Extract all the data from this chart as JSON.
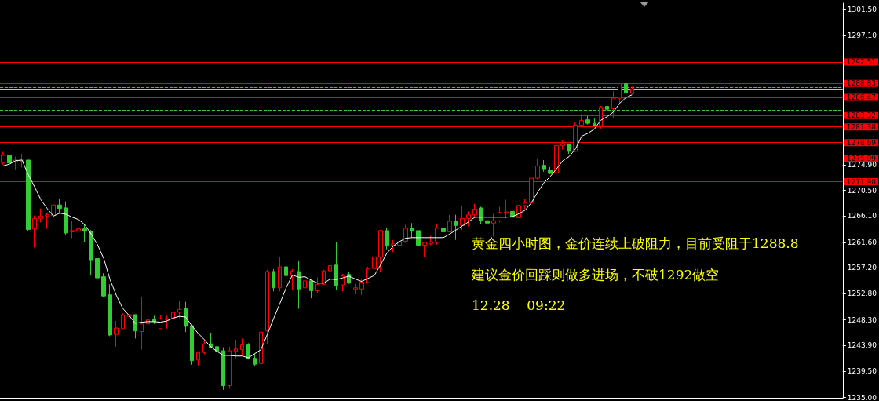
{
  "chart_data": {
    "type": "candlestick",
    "categories": [
      null,
      null,
      null,
      null,
      null,
      null,
      null,
      null,
      null,
      null,
      null,
      null,
      null,
      null,
      null,
      null,
      null,
      null,
      null,
      null,
      null,
      null,
      null,
      null,
      null,
      null,
      null,
      null,
      null,
      null,
      null,
      null,
      null,
      null,
      null,
      null,
      null,
      null,
      null,
      null,
      null,
      null,
      null,
      null,
      null,
      null,
      null,
      null,
      null,
      null,
      null,
      null,
      null,
      null,
      null,
      null,
      null,
      null,
      null,
      null,
      null,
      null,
      null,
      null,
      null,
      null,
      null,
      null,
      null,
      null,
      null,
      null,
      null,
      null,
      null,
      null,
      null,
      null,
      null,
      null,
      null,
      null,
      null,
      null,
      null,
      null,
      null,
      null,
      null,
      null,
      null,
      null,
      null,
      null,
      null,
      null,
      null,
      null,
      null,
      null,
      null,
      null,
      null,
      null,
      null,
      null,
      null,
      null,
      null,
      null,
      null,
      null,
      null,
      null,
      null,
      null,
      null,
      null,
      null,
      null,
      null,
      null,
      null,
      null,
      null,
      null,
      null,
      null,
      null,
      null,
      null,
      null,
      null,
      null
    ],
    "ohlc": [
      [
        1275.3,
        1277.1,
        1274.9,
        1276.5
      ],
      [
        1276.5,
        1276.9,
        1274.5,
        1275.2
      ],
      [
        1275.4,
        1276.3,
        1274.1,
        1275.7
      ],
      [
        1275.5,
        1276.8,
        1274.4,
        1275.7
      ],
      [
        1275.7,
        1275.7,
        1263.5,
        1263.8
      ],
      [
        1263.9,
        1266.2,
        1260.7,
        1265.7
      ],
      [
        1265.7,
        1267.4,
        1265.0,
        1266.1
      ],
      [
        1266.1,
        1266.7,
        1263.9,
        1266.3
      ],
      [
        1266.2,
        1269.0,
        1265.6,
        1268.0
      ],
      [
        1268.0,
        1269.1,
        1266.6,
        1267.4
      ],
      [
        1267.5,
        1268.6,
        1262.8,
        1263.2
      ],
      [
        1263.4,
        1265.3,
        1262.3,
        1263.6
      ],
      [
        1263.5,
        1264.8,
        1262.3,
        1263.9
      ],
      [
        1263.9,
        1264.7,
        1261.6,
        1263.5
      ],
      [
        1263.5,
        1263.7,
        1255.9,
        1258.6
      ],
      [
        1258.8,
        1258.8,
        1254.5,
        1255.5
      ],
      [
        1255.7,
        1256.3,
        1252.2,
        1252.4
      ],
      [
        1252.6,
        1254.4,
        1245.5,
        1245.7
      ],
      [
        1245.8,
        1248.1,
        1243.7,
        1246.9
      ],
      [
        1246.8,
        1249.4,
        1246.8,
        1249.1
      ],
      [
        1248.9,
        1249.6,
        1248.0,
        1249.2
      ],
      [
        1249.2,
        1249.2,
        1245.1,
        1246.4
      ],
      [
        1246.3,
        1252.3,
        1243.2,
        1247.6
      ],
      [
        1247.6,
        1248.6,
        1246.0,
        1248.3
      ],
      [
        1248.4,
        1249.0,
        1247.6,
        1248.0
      ],
      [
        1246.8,
        1249.1,
        1246.8,
        1248.5
      ],
      [
        1248.3,
        1249.0,
        1246.8,
        1248.5
      ],
      [
        1248.5,
        1251.1,
        1247.9,
        1249.6
      ],
      [
        1249.6,
        1251.5,
        1248.6,
        1250.1
      ],
      [
        1250.2,
        1251.4,
        1246.2,
        1247.2
      ],
      [
        1247.3,
        1247.6,
        1240.6,
        1241.3
      ],
      [
        1241.4,
        1242.9,
        1240.5,
        1242.7
      ],
      [
        1242.7,
        1244.8,
        1242.4,
        1244.2
      ],
      [
        1244.2,
        1246.1,
        1243.4,
        1243.6
      ],
      [
        1243.7,
        1244.5,
        1242.6,
        1242.9
      ],
      [
        1243.0,
        1243.6,
        1236.3,
        1237.0
      ],
      [
        1237.0,
        1243.7,
        1236.5,
        1243.0
      ],
      [
        1242.9,
        1244.9,
        1241.7,
        1243.3
      ],
      [
        1243.2,
        1245.1,
        1242.2,
        1244.0
      ],
      [
        1244.0,
        1244.3,
        1241.5,
        1241.6
      ],
      [
        1241.7,
        1242.5,
        1240.3,
        1240.7
      ],
      [
        1240.8,
        1247.3,
        1240.1,
        1246.2
      ],
      [
        1246.4,
        1256.9,
        1244.1,
        1256.6
      ],
      [
        1256.6,
        1257.0,
        1253.2,
        1253.8
      ],
      [
        1253.8,
        1259.0,
        1253.2,
        1257.4
      ],
      [
        1257.4,
        1258.6,
        1255.3,
        1255.9
      ],
      [
        1255.9,
        1257.0,
        1253.4,
        1256.7
      ],
      [
        1256.6,
        1258.5,
        1250.2,
        1253.6
      ],
      [
        1253.8,
        1256.4,
        1251.5,
        1255.0
      ],
      [
        1255.0,
        1255.2,
        1252.0,
        1253.3
      ],
      [
        1253.3,
        1255.6,
        1252.9,
        1254.4
      ],
      [
        1254.4,
        1256.9,
        1254.3,
        1256.7
      ],
      [
        1256.7,
        1258.6,
        1255.9,
        1257.6
      ],
      [
        1257.7,
        1261.7,
        1253.5,
        1254.2
      ],
      [
        1254.3,
        1256.2,
        1253.2,
        1255.8
      ],
      [
        1256.1,
        1256.6,
        1254.5,
        1254.6
      ],
      [
        1253.6,
        1254.5,
        1252.7,
        1253.8
      ],
      [
        1253.6,
        1255.3,
        1252.6,
        1254.8
      ],
      [
        1254.7,
        1257.4,
        1254.7,
        1257.1
      ],
      [
        1257.1,
        1259.4,
        1256.1,
        1259.1
      ],
      [
        1259.1,
        1263.7,
        1256.5,
        1263.6
      ],
      [
        1263.6,
        1264.0,
        1260.4,
        1261.1
      ],
      [
        1261.1,
        1262.0,
        1259.9,
        1261.3
      ],
      [
        1261.1,
        1262.3,
        1260.0,
        1261.7
      ],
      [
        1261.8,
        1264.6,
        1261.5,
        1264.0
      ],
      [
        1264.0,
        1264.9,
        1262.4,
        1263.5
      ],
      [
        1263.6,
        1265.2,
        1260.0,
        1261.1
      ],
      [
        1261.1,
        1261.7,
        1259.1,
        1261.6
      ],
      [
        1261.4,
        1262.7,
        1261.1,
        1261.7
      ],
      [
        1261.6,
        1264.7,
        1261.2,
        1264.0
      ],
      [
        1264.0,
        1264.4,
        1262.4,
        1263.4
      ],
      [
        1263.4,
        1266.3,
        1263.4,
        1265.2
      ],
      [
        1265.2,
        1266.3,
        1262.0,
        1264.5
      ],
      [
        1264.5,
        1267.8,
        1263.7,
        1265.7
      ],
      [
        1265.7,
        1266.9,
        1264.3,
        1266.3
      ],
      [
        1266.3,
        1268.2,
        1265.9,
        1267.3
      ],
      [
        1267.5,
        1267.7,
        1264.7,
        1265.3
      ],
      [
        1265.3,
        1265.9,
        1264.1,
        1264.9
      ],
      [
        1264.9,
        1266.5,
        1262.6,
        1265.3
      ],
      [
        1265.3,
        1267.7,
        1265.0,
        1266.7
      ],
      [
        1266.6,
        1268.9,
        1265.7,
        1266.8
      ],
      [
        1266.9,
        1267.1,
        1264.9,
        1265.9
      ],
      [
        1265.8,
        1268.0,
        1265.8,
        1267.9
      ],
      [
        1267.9,
        1269.1,
        1267.3,
        1268.3
      ],
      [
        1268.4,
        1272.9,
        1267.5,
        1272.6
      ],
      [
        1272.6,
        1276.0,
        1272.4,
        1274.7
      ],
      [
        1274.8,
        1275.7,
        1273.7,
        1274.2
      ],
      [
        1274.0,
        1274.5,
        1273.3,
        1273.4
      ],
      [
        1273.5,
        1279.1,
        1273.4,
        1278.2
      ],
      [
        1278.2,
        1279.1,
        1277.5,
        1278.5
      ],
      [
        1278.5,
        1278.5,
        1276.8,
        1277.2
      ],
      [
        1277.2,
        1282.2,
        1277.1,
        1281.7
      ],
      [
        1281.7,
        1283.6,
        1281.5,
        1282.5
      ],
      [
        1282.6,
        1283.5,
        1281.8,
        1282.0
      ],
      [
        1282.0,
        1282.8,
        1281.5,
        1281.6
      ],
      [
        1281.6,
        1285.0,
        1281.1,
        1284.8
      ],
      [
        1284.9,
        1286.3,
        1284.0,
        1284.4
      ],
      [
        1284.5,
        1287.5,
        1282.9,
        1286.3
      ],
      [
        1286.3,
        1288.8,
        1285.2,
        1288.8
      ],
      [
        1288.8,
        1288.9,
        1286.7,
        1287.2
      ],
      [
        1287.2,
        1288.3,
        1287.0,
        1287.9
      ],
      null,
      null,
      null,
      null,
      null,
      null,
      null,
      null,
      null,
      null,
      null,
      null,
      null,
      null,
      null,
      null,
      null,
      null,
      null,
      null,
      null,
      null,
      null,
      null,
      null,
      null,
      null,
      null,
      null,
      null,
      null,
      null,
      null
    ],
    "colors": [
      "#ff0000",
      "#32cd32",
      "#ff0000",
      "#ff0000",
      "#32cd32",
      "#ff0000",
      "#ff0000",
      "#ff0000",
      "#ff0000",
      "#32cd32",
      "#32cd32",
      "#ff0000",
      "#ff0000",
      "#32cd32",
      "#32cd32",
      "#32cd32",
      "#32cd32",
      "#32cd32",
      "#ff0000",
      "#ff0000",
      "#ff0000",
      "#32cd32",
      "#ff0000",
      "#ff0000",
      "#32cd32",
      "#ff0000",
      "#ff0000",
      "#ff0000",
      "#ff0000",
      "#32cd32",
      "#32cd32",
      "#ff0000",
      "#ff0000",
      "#32cd32",
      "#32cd32",
      "#32cd32",
      "#ff0000",
      "#ff0000",
      "#ff0000",
      "#32cd32",
      "#32cd32",
      "#ff0000",
      "#ff0000",
      "#32cd32",
      "#ff0000",
      "#32cd32",
      "#ff0000",
      "#32cd32",
      "#ff0000",
      "#32cd32",
      "#ff0000",
      "#ff0000",
      "#ff0000",
      "#32cd32",
      "#ff0000",
      "#32cd32",
      "#ff0000",
      "#ff0000",
      "#ff0000",
      "#ff0000",
      "#ff0000",
      "#32cd32",
      "#ff0000",
      "#ff0000",
      "#ff0000",
      "#32cd32",
      "#32cd32",
      "#ff0000",
      "#ff0000",
      "#ff0000",
      "#32cd32",
      "#ff0000",
      "#32cd32",
      "#ff0000",
      "#ff0000",
      "#ff0000",
      "#32cd32",
      "#32cd32",
      "#ff0000",
      "#ff0000",
      "#ff0000",
      "#32cd32",
      "#ff0000",
      "#ff0000",
      "#ff0000",
      "#ff0000",
      "#32cd32",
      "#32cd32",
      "#ff0000",
      "#ff0000",
      "#32cd32",
      "#ff0000",
      "#ff0000",
      "#32cd32",
      "#32cd32",
      "#ff0000",
      "#32cd32",
      "#ff0000",
      "#ff0000",
      "#32cd32",
      "#ff0000",
      null,
      null,
      null,
      null,
      null,
      null,
      null,
      null,
      null,
      null,
      null,
      null,
      null,
      null,
      null,
      null,
      null,
      null,
      null,
      null,
      null,
      null,
      null,
      null,
      null,
      null,
      null,
      null,
      null,
      null,
      null,
      null,
      null
    ],
    "series": [
      {
        "type": "line",
        "color": "#ffffff",
        "values": [
          1274.7,
          1275.0,
          1275.6,
          1275.7,
          1273.2,
          1271.1,
          1268.9,
          1267.4,
          1266.1,
          1266.6,
          1266.4,
          1265.9,
          1265.5,
          1264.6,
          1263.0,
          1261.2,
          1258.8,
          1255.2,
          1252.5,
          1250.3,
          1249.1,
          1247.7,
          1247.9,
          1248.0,
          1248.0,
          1247.9,
          1248.1,
          1248.6,
          1248.9,
          1248.8,
          1247.3,
          1246.0,
          1244.9,
          1243.7,
          1242.9,
          1242.2,
          1242.2,
          1242.1,
          1242.1,
          1241.8,
          1242.5,
          1243.2,
          1245.8,
          1248.5,
          1251.1,
          1253.8,
          1256.0,
          1255.6,
          1255.7,
          1255.1,
          1254.6,
          1254.6,
          1255.3,
          1255.2,
          1255.5,
          1255.8,
          1255.3,
          1254.9,
          1255.4,
          1255.9,
          1257.7,
          1259.7,
          1260.9,
          1261.7,
          1262.3,
          1262.4,
          1262.4,
          1262.4,
          1262.4,
          1262.4,
          1262.4,
          1263.0,
          1263.7,
          1264.4,
          1265.1,
          1265.9,
          1265.9,
          1265.9,
          1265.9,
          1265.9,
          1265.9,
          1266.0,
          1266.5,
          1267.1,
          1268.4,
          1270.2,
          1271.8,
          1272.9,
          1274.2,
          1275.6,
          1276.3,
          1277.6,
          1279.8,
          1280.3,
          1281.0,
          1282.5,
          1283.1,
          1283.9,
          1285.4,
          1286.4,
          1286.9,
          null,
          null,
          null,
          null,
          null,
          null,
          null,
          null,
          null,
          null,
          null,
          null,
          null,
          null,
          null,
          null,
          null,
          null,
          null,
          null,
          null,
          null,
          null,
          null,
          null,
          null,
          null,
          null,
          null,
          null,
          null,
          null,
          null
        ]
      }
    ],
    "ylim": [
      1234.9,
      1302.6
    ],
    "yticks": [
      {
        "value": 1235.0,
        "label": "1235.00"
      },
      {
        "value": 1239.5,
        "label": "1239.50"
      },
      {
        "value": 1243.9,
        "label": "1243.90"
      },
      {
        "value": 1248.3,
        "label": "1248.30"
      },
      {
        "value": 1252.8,
        "label": "1252.80"
      },
      {
        "value": 1257.2,
        "label": "1257.20"
      },
      {
        "value": 1261.6,
        "label": "1261.60"
      },
      {
        "value": 1266.1,
        "label": "1266.10"
      },
      {
        "value": 1270.5,
        "label": "1270.50"
      },
      {
        "value": 1274.9,
        "label": "1274.90"
      },
      {
        "value": 1297.1,
        "label": "1297.10"
      },
      {
        "value": 1301.5,
        "label": "1301.50"
      }
    ],
    "ref_lines": [
      {
        "axis": "y",
        "value": 1292.51,
        "label": "1292.51",
        "color": "#ff0000",
        "line_style": "solid"
      },
      {
        "axis": "y",
        "value": 1288.83,
        "label": "1288.83",
        "color": "#ff0000",
        "line_style": "solid"
      },
      {
        "axis": "y",
        "value": 1288.2,
        "color": "#32cd32",
        "line_style": "dashed"
      },
      {
        "axis": "y",
        "value": 1287.83,
        "color": "#c0c0c0",
        "line_style": "solid"
      },
      {
        "axis": "y",
        "value": 1286.47,
        "label": "1286.47",
        "color": "#ff0000",
        "line_style": "solid"
      },
      {
        "axis": "y",
        "value": 1284.3,
        "color": "#32cd32",
        "line_style": "dashed"
      },
      {
        "axis": "y",
        "value": 1283.32,
        "label": "1283.32",
        "color": "#ff0000",
        "line_style": "solid"
      },
      {
        "axis": "y",
        "value": 1281.38,
        "label": "1281.38",
        "color": "#ff0000",
        "line_style": "solid"
      },
      {
        "axis": "y",
        "value": 1278.69,
        "label": "1278.69",
        "color": "#ff0000",
        "line_style": "solid"
      },
      {
        "axis": "y",
        "value": 1275.99,
        "label": "1275.99",
        "color": "#ff0000",
        "line_style": "solid"
      },
      {
        "axis": "y",
        "value": 1271.98,
        "label": "1271.98",
        "color": "#ff0000",
        "line_style": "solid"
      }
    ],
    "annotations": [
      "黄金四小时图，金价连续上破阻力，目前受阻于1288.8",
      "建议金价回踩则做多进场，不破1292做空",
      "12.28    09:22"
    ],
    "tick_labels": "y",
    "grid": false,
    "line_style": "solid"
  }
}
